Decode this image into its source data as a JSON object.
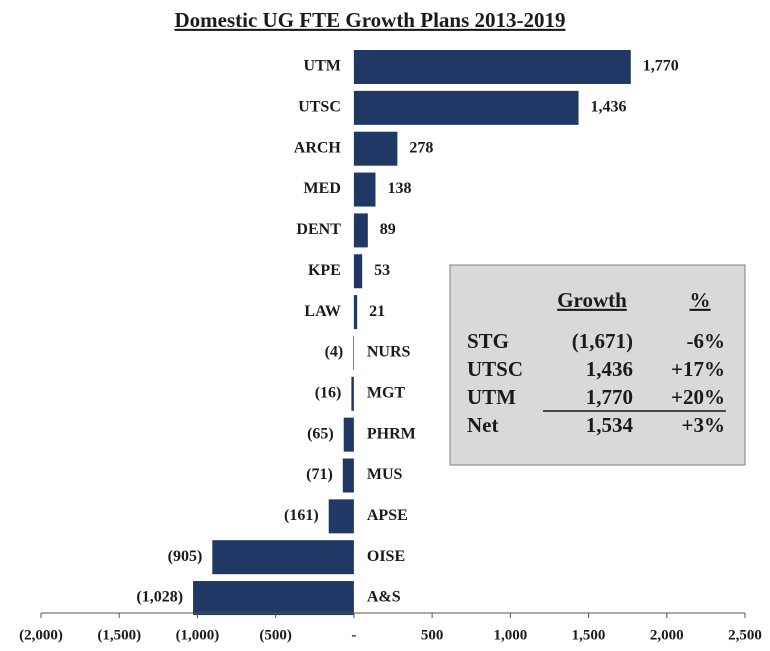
{
  "chart_data": {
    "type": "bar",
    "orientation": "horizontal",
    "title": "Domestic UG FTE Growth Plans 2013-2019",
    "categories": [
      "UTM",
      "UTSC",
      "ARCH",
      "MED",
      "DENT",
      "KPE",
      "LAW",
      "NURS",
      "MGT",
      "PHRM",
      "MUS",
      "APSE",
      "OISE",
      "A&S"
    ],
    "values": [
      1770,
      1436,
      278,
      138,
      89,
      53,
      21,
      -4,
      -16,
      -65,
      -71,
      -161,
      -905,
      -1028
    ],
    "value_labels": [
      "1,770",
      "1,436",
      "278",
      "138",
      "89",
      "53",
      "21",
      "(4)",
      "(16)",
      "(65)",
      "(71)",
      "(161)",
      "(905)",
      "(1,028)"
    ],
    "color": "#1f3864",
    "xlim": [
      -2000,
      2500
    ],
    "xticks": [
      {
        "value": -2000,
        "label": "(2,000)"
      },
      {
        "value": -1500,
        "label": "(1,500)"
      },
      {
        "value": -1000,
        "label": "(1,000)"
      },
      {
        "value": -500,
        "label": "(500)"
      },
      {
        "value": 0,
        "label": "-"
      },
      500,
      {
        "value": 1000,
        "label": "1,000"
      },
      {
        "value": 1500,
        "label": "1,500"
      },
      {
        "value": 2000,
        "label": "2,000"
      },
      {
        "value": 2500,
        "label": "2,500"
      }
    ],
    "grid": false,
    "table": {
      "header": [
        "Growth",
        "%"
      ],
      "rows": [
        [
          "STG",
          "(1,671)",
          "-6%"
        ],
        [
          "UTSC",
          "1,436",
          "+17%"
        ],
        [
          "UTM",
          "1,770",
          "+20%"
        ],
        [
          "Net",
          "1,534",
          "+3%"
        ]
      ]
    }
  }
}
